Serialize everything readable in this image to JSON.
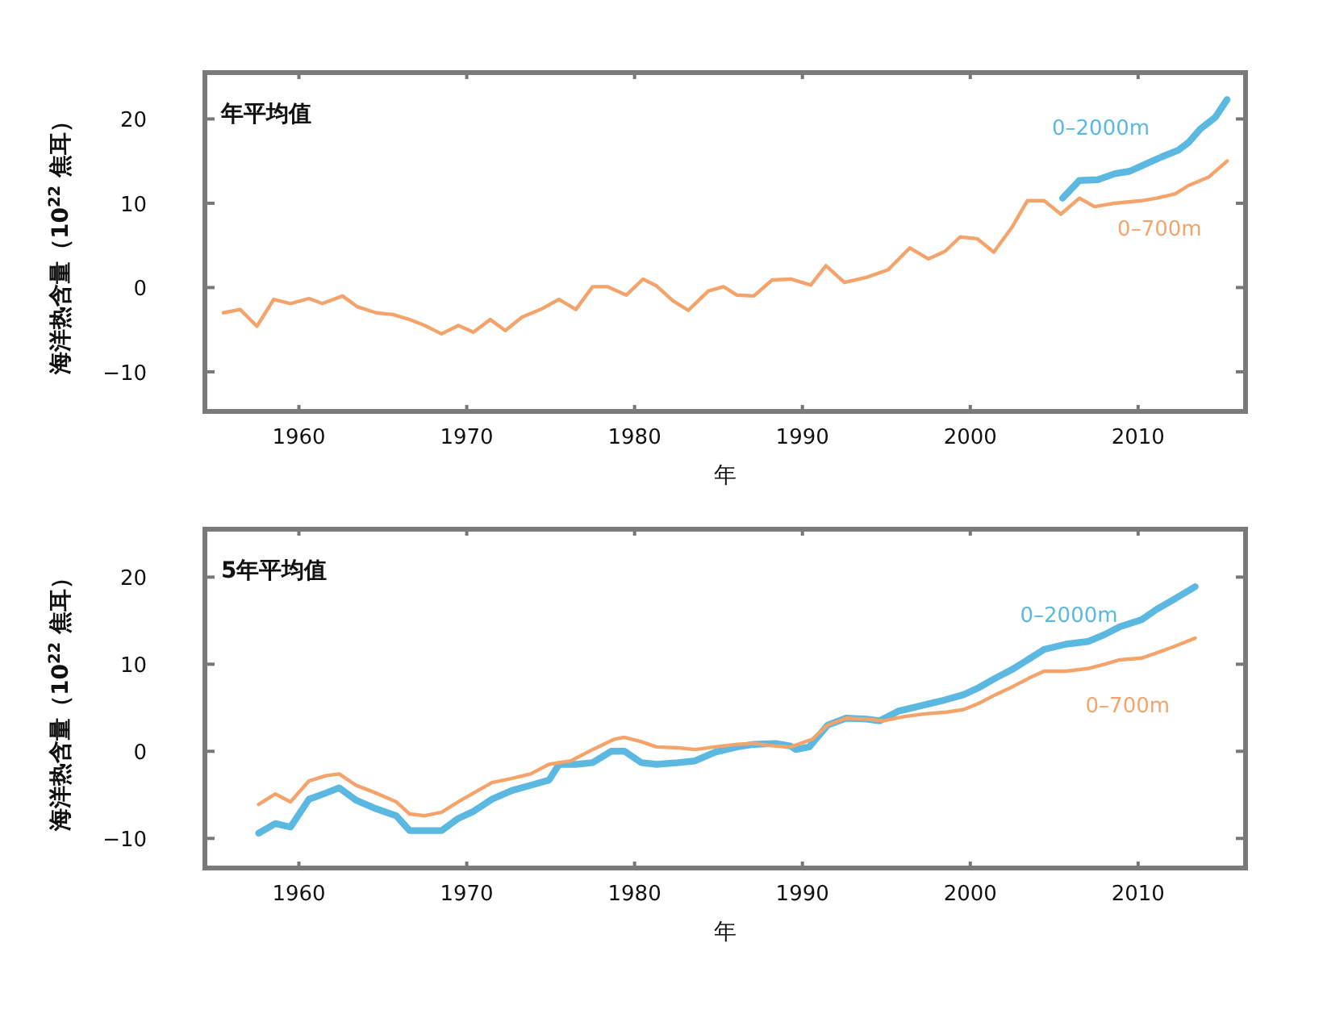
{
  "chart_data": [
    {
      "type": "line",
      "title": "年平均值",
      "xlabel": "年",
      "ylabel": "海洋热含量（10$^{22}$ 焦耳）",
      "xlim": [
        1954.4,
        2016.4
      ],
      "ylim": [
        -14.7,
        25.5
      ],
      "xticks": [
        1960,
        1970,
        1980,
        1990,
        2000,
        2010
      ],
      "yticks": [
        {
          "value": -10,
          "label": "−10"
        },
        0,
        10,
        20
      ],
      "series": [
        {
          "name": "0–2000m",
          "color": "#5bb8e0",
          "x": [
            2005.5,
            2006.5,
            2007.6,
            2008.6,
            2009.5,
            2010.5,
            2011.4,
            2012.4,
            2013.0,
            2013.7,
            2014.6,
            2015.3
          ],
          "values": [
            10.6,
            12.7,
            12.8,
            13.5,
            13.8,
            14.7,
            15.5,
            16.3,
            17.2,
            18.8,
            20.2,
            22.3
          ]
        },
        {
          "name": "0–700m",
          "color": "#f4a46a",
          "x": [
            1955.5,
            1956.5,
            1957.5,
            1958.5,
            1959.5,
            1960.6,
            1961.4,
            1962.6,
            1963.5,
            1964.6,
            1965.6,
            1966.6,
            1967.5,
            1968.5,
            1969.5,
            1970.4,
            1971.4,
            1972.3,
            1973.3,
            1974.4,
            1975.5,
            1976.5,
            1977.5,
            1978.4,
            1979.5,
            1980.5,
            1981.3,
            1982.3,
            1983.2,
            1984.4,
            1985.3,
            1986.1,
            1987.1,
            1988.2,
            1989.3,
            1990.5,
            1991.4,
            1992.5,
            1993.8,
            1995.1,
            1996.4,
            1997.5,
            1998.5,
            1999.4,
            2000.4,
            2001.4,
            2002.5,
            2003.4,
            2004.4,
            2005.4,
            2006.5,
            2007.4,
            2008.6,
            2010.2,
            2011.1,
            2012.2,
            2013.0,
            2014.2,
            2015.3
          ],
          "values": [
            -3.0,
            -2.6,
            -4.6,
            -1.4,
            -1.9,
            -1.3,
            -1.9,
            -1.0,
            -2.3,
            -3.0,
            -3.2,
            -3.8,
            -4.5,
            -5.5,
            -4.5,
            -5.3,
            -3.8,
            -5.1,
            -3.5,
            -2.6,
            -1.4,
            -2.6,
            0.1,
            0.1,
            -0.9,
            1.0,
            0.2,
            -1.6,
            -2.7,
            -0.4,
            0.1,
            -0.9,
            -1.0,
            0.9,
            1.0,
            0.3,
            2.6,
            0.6,
            1.2,
            2.1,
            4.7,
            3.4,
            4.3,
            6.0,
            5.8,
            4.2,
            7.2,
            10.3,
            10.3,
            8.7,
            10.6,
            9.6,
            10.0,
            10.3,
            10.6,
            11.1,
            12.1,
            13.1,
            15.0
          ]
        }
      ]
    },
    {
      "type": "line",
      "title": "5年平均值",
      "xlabel": "年",
      "ylabel": "海洋热含量（10$^{22}$ 焦耳）",
      "xlim": [
        1954.4,
        2016.4
      ],
      "ylim": [
        -13.4,
        25.5
      ],
      "xticks": [
        1960,
        1970,
        1980,
        1990,
        2000,
        2010
      ],
      "yticks": [
        {
          "value": -10,
          "label": "−10"
        },
        0,
        10,
        20
      ],
      "series": [
        {
          "name": "0–2000m",
          "color": "#5bb8e0",
          "x": [
            1957.6,
            1958.6,
            1959.5,
            1960.6,
            1961.6,
            1962.4,
            1963.4,
            1964.6,
            1965.8,
            1966.6,
            1967.5,
            1968.5,
            1969.5,
            1970.4,
            1971.5,
            1972.7,
            1973.8,
            1974.9,
            1975.5,
            1976.5,
            1977.5,
            1978.6,
            1979.4,
            1980.4,
            1981.3,
            1982.6,
            1983.6,
            1984.8,
            1986.1,
            1987.1,
            1988.4,
            1989.3,
            1989.6,
            1990.4,
            1991.5,
            1992.6,
            1993.8,
            1994.6,
            1995.7,
            1997.0,
            1998.3,
            1999.6,
            2000.5,
            2001.5,
            2002.5,
            2003.5,
            2004.4,
            2005.7,
            2007.0,
            2008.0,
            2008.9,
            2010.2,
            2011.1,
            2012.1,
            2013.4
          ],
          "values": [
            -9.4,
            -8.3,
            -8.7,
            -5.5,
            -4.8,
            -4.2,
            -5.6,
            -6.6,
            -7.4,
            -9.1,
            -9.1,
            -9.1,
            -7.7,
            -6.9,
            -5.5,
            -4.5,
            -3.9,
            -3.3,
            -1.5,
            -1.5,
            -1.3,
            0.0,
            0.0,
            -1.3,
            -1.5,
            -1.3,
            -1.1,
            -0.1,
            0.5,
            0.8,
            0.9,
            0.6,
            0.2,
            0.5,
            3.0,
            3.8,
            3.7,
            3.5,
            4.6,
            5.2,
            5.8,
            6.5,
            7.3,
            8.4,
            9.4,
            10.6,
            11.7,
            12.3,
            12.6,
            13.4,
            14.3,
            15.1,
            16.3,
            17.4,
            18.9
          ]
        },
        {
          "name": "0–700m",
          "color": "#f4a46a",
          "x": [
            1957.6,
            1958.6,
            1959.5,
            1960.6,
            1961.6,
            1962.4,
            1963.4,
            1964.6,
            1965.8,
            1966.6,
            1967.5,
            1968.5,
            1969.5,
            1970.4,
            1971.5,
            1972.7,
            1973.8,
            1974.9,
            1976.2,
            1977.5,
            1978.8,
            1979.4,
            1980.4,
            1981.3,
            1982.6,
            1983.6,
            1984.8,
            1986.1,
            1987.1,
            1988.4,
            1989.3,
            1990.6,
            1991.5,
            1992.6,
            1993.8,
            1994.8,
            1996.1,
            1997.3,
            1998.6,
            1999.6,
            2000.5,
            2001.5,
            2002.5,
            2003.5,
            2004.4,
            2005.7,
            2007.0,
            2008.0,
            2008.9,
            2010.2,
            2011.1,
            2012.1,
            2013.4
          ],
          "values": [
            -6.1,
            -4.9,
            -5.8,
            -3.4,
            -2.8,
            -2.6,
            -3.9,
            -4.8,
            -5.8,
            -7.2,
            -7.4,
            -7.0,
            -5.8,
            -4.8,
            -3.6,
            -3.1,
            -2.6,
            -1.5,
            -1.1,
            0.2,
            1.4,
            1.6,
            1.1,
            0.5,
            0.4,
            0.2,
            0.5,
            0.8,
            0.9,
            0.6,
            0.5,
            1.4,
            3.0,
            3.8,
            3.7,
            3.5,
            4.0,
            4.3,
            4.5,
            4.8,
            5.5,
            6.5,
            7.4,
            8.4,
            9.2,
            9.2,
            9.5,
            10.0,
            10.5,
            10.7,
            11.3,
            12.0,
            13.0
          ]
        }
      ]
    }
  ]
}
